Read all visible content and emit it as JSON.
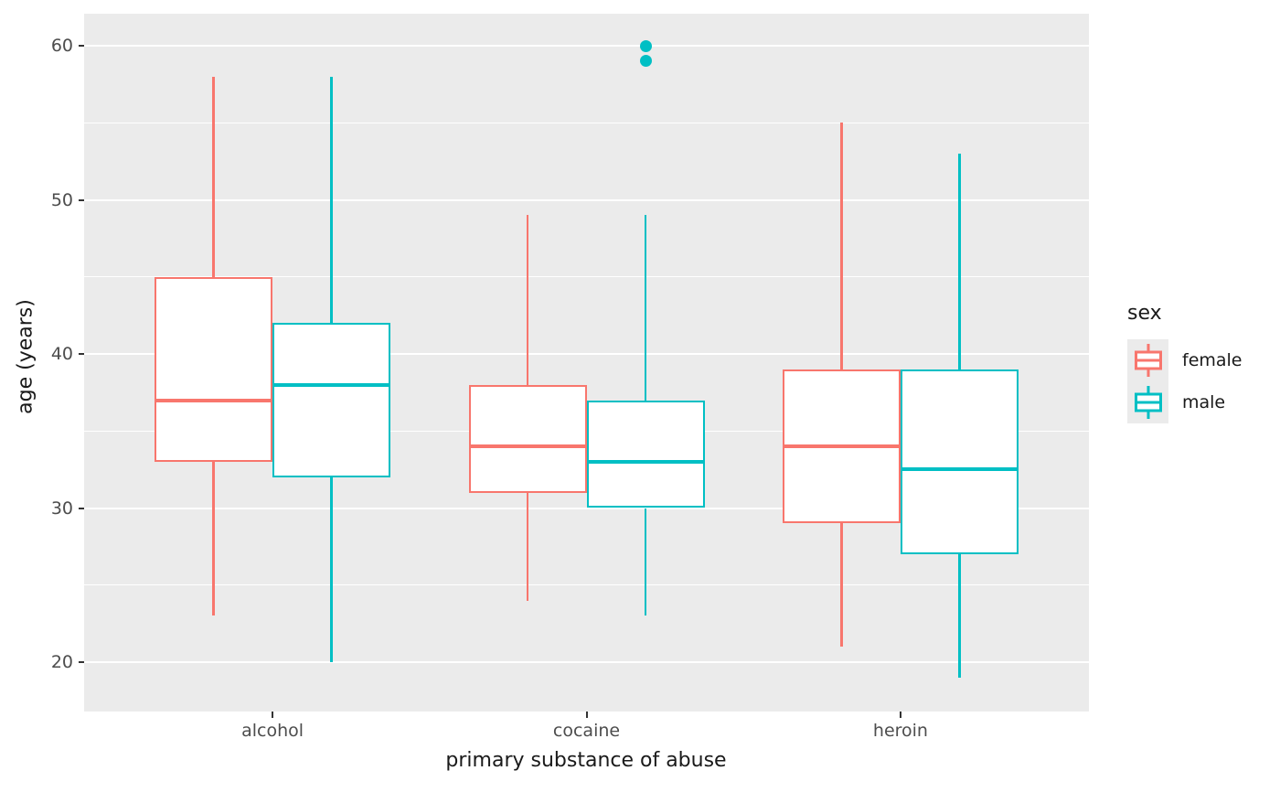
{
  "chart_data": {
    "type": "boxplot",
    "xlabel": "primary substance of abuse",
    "ylabel": "age (years)",
    "categories": [
      "alcohol",
      "cocaine",
      "heroin"
    ],
    "y_ticks": [
      20,
      30,
      40,
      50,
      60
    ],
    "y_minor_gridlines": [
      25,
      35,
      45,
      55
    ],
    "ylim": [
      16.8,
      62.1
    ],
    "grid": true,
    "panel_background": "#EBEBEB",
    "gridline_color": "#FFFFFF",
    "legend": {
      "title": "sex",
      "position": "right",
      "entries": [
        {
          "label": "female",
          "color": "#F8766D"
        },
        {
          "label": "male",
          "color": "#00BFC4"
        }
      ]
    },
    "series": [
      {
        "name": "female",
        "color": "#F8766D",
        "boxes": [
          {
            "category": "alcohol",
            "whisker_low": 23,
            "q1": 33,
            "median": 37,
            "q3": 45,
            "whisker_high": 58,
            "outliers": []
          },
          {
            "category": "cocaine",
            "whisker_low": 24,
            "q1": 31,
            "median": 34,
            "q3": 38,
            "whisker_high": 49,
            "outliers": []
          },
          {
            "category": "heroin",
            "whisker_low": 21,
            "q1": 29,
            "median": 34,
            "q3": 39,
            "whisker_high": 55,
            "outliers": []
          }
        ]
      },
      {
        "name": "male",
        "color": "#00BFC4",
        "boxes": [
          {
            "category": "alcohol",
            "whisker_low": 20,
            "q1": 32,
            "median": 38,
            "q3": 42,
            "whisker_high": 58,
            "outliers": []
          },
          {
            "category": "cocaine",
            "whisker_low": 23,
            "q1": 30,
            "median": 33,
            "q3": 37,
            "whisker_high": 49,
            "outliers": [
              59,
              60
            ]
          },
          {
            "category": "heroin",
            "whisker_low": 19,
            "q1": 27,
            "median": 32.5,
            "q3": 39,
            "whisker_high": 53,
            "outliers": []
          }
        ]
      }
    ]
  }
}
